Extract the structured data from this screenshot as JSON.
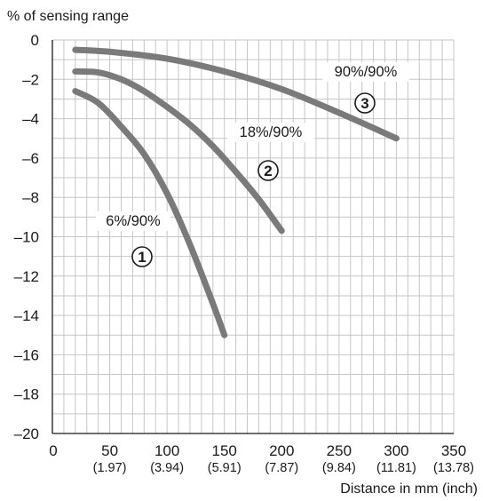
{
  "chart_data": {
    "type": "line",
    "ylabel": "% of sensing range",
    "xlabel": "Distance in mm (inch)",
    "xlim": [
      0,
      350
    ],
    "ylim": [
      -20,
      0
    ],
    "x_ticks": [
      0,
      50,
      100,
      150,
      200,
      250,
      300,
      350
    ],
    "x_tick_labels": [
      "0",
      "50",
      "100",
      "150",
      "200",
      "250",
      "300",
      "350"
    ],
    "x_tick_sublabels": [
      "",
      "(1.97)",
      "(3.94)",
      "(5.91)",
      "(7.87)",
      "(9.84)",
      "(11.81)",
      "(13.78)"
    ],
    "y_ticks": [
      0,
      -2,
      -4,
      -6,
      -8,
      -10,
      -12,
      -14,
      -16,
      -18,
      -20
    ],
    "y_tick_labels": [
      "0",
      "–2",
      "–4",
      "–6",
      "–8",
      "–10",
      "–12",
      "–14",
      "–16",
      "–18",
      "–20"
    ],
    "grid": true,
    "line_color": "#7a7a7a",
    "series": [
      {
        "label": "6%/90%",
        "marker": "1",
        "x": [
          20,
          40,
          60,
          80,
          100,
          120,
          140,
          150
        ],
        "y": [
          -2.6,
          -3.2,
          -4.4,
          -5.8,
          -7.8,
          -10.4,
          -13.4,
          -15.0
        ]
      },
      {
        "label": "18%/90%",
        "marker": "2",
        "x": [
          20,
          40,
          60,
          80,
          100,
          120,
          140,
          160,
          180,
          200
        ],
        "y": [
          -1.6,
          -1.65,
          -2.0,
          -2.6,
          -3.4,
          -4.3,
          -5.4,
          -6.7,
          -8.1,
          -9.7
        ]
      },
      {
        "label": "90%/90%",
        "marker": "3",
        "x": [
          20,
          50,
          100,
          150,
          200,
          250,
          300
        ],
        "y": [
          -0.5,
          -0.6,
          -0.95,
          -1.6,
          -2.5,
          -3.7,
          -5.0
        ]
      }
    ]
  }
}
